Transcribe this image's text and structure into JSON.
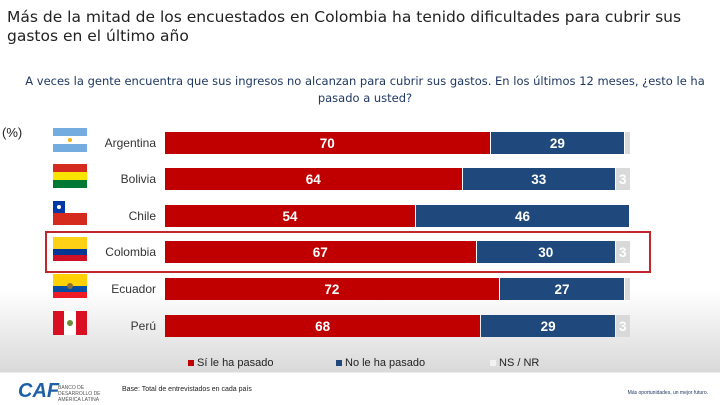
{
  "chart_data": {
    "type": "bar",
    "stacked": true,
    "orientation": "horizontal",
    "title": "Más de la mitad de los encuestados en Colombia ha tenido dificultades para cubrir sus gastos en el último año",
    "subtitle": "A veces la gente encuentra que sus ingresos no alcanzan para cubrir sus gastos. En los últimos 12 meses, ¿esto le ha pasado a usted?",
    "unit": "(%)",
    "categories": [
      "Argentina",
      "Bolivia",
      "Chile",
      "Colombia",
      "Ecuador",
      "Perú"
    ],
    "highlight": "Colombia",
    "series": [
      {
        "name": "Sí le ha pasado",
        "color": "#c00000",
        "values": [
          70,
          64,
          54,
          67,
          72,
          68
        ]
      },
      {
        "name": "No le ha pasado",
        "color": "#1f497d",
        "values": [
          29,
          33,
          46,
          30,
          27,
          29
        ]
      },
      {
        "name": "NS / NR",
        "color": "#d9d9d9",
        "values": [
          1,
          3,
          0,
          3,
          1,
          3
        ]
      }
    ],
    "xlim": [
      0,
      100
    ],
    "legend": "bottom"
  },
  "footer": {
    "logo": "CAF",
    "logo_text": "BANCO DE DESARROLLO DE AMÉRICA LATINA",
    "base": "Base: Total de entrevistados en cada país",
    "slogan": "Más oportunidades, un mejor futuro."
  }
}
